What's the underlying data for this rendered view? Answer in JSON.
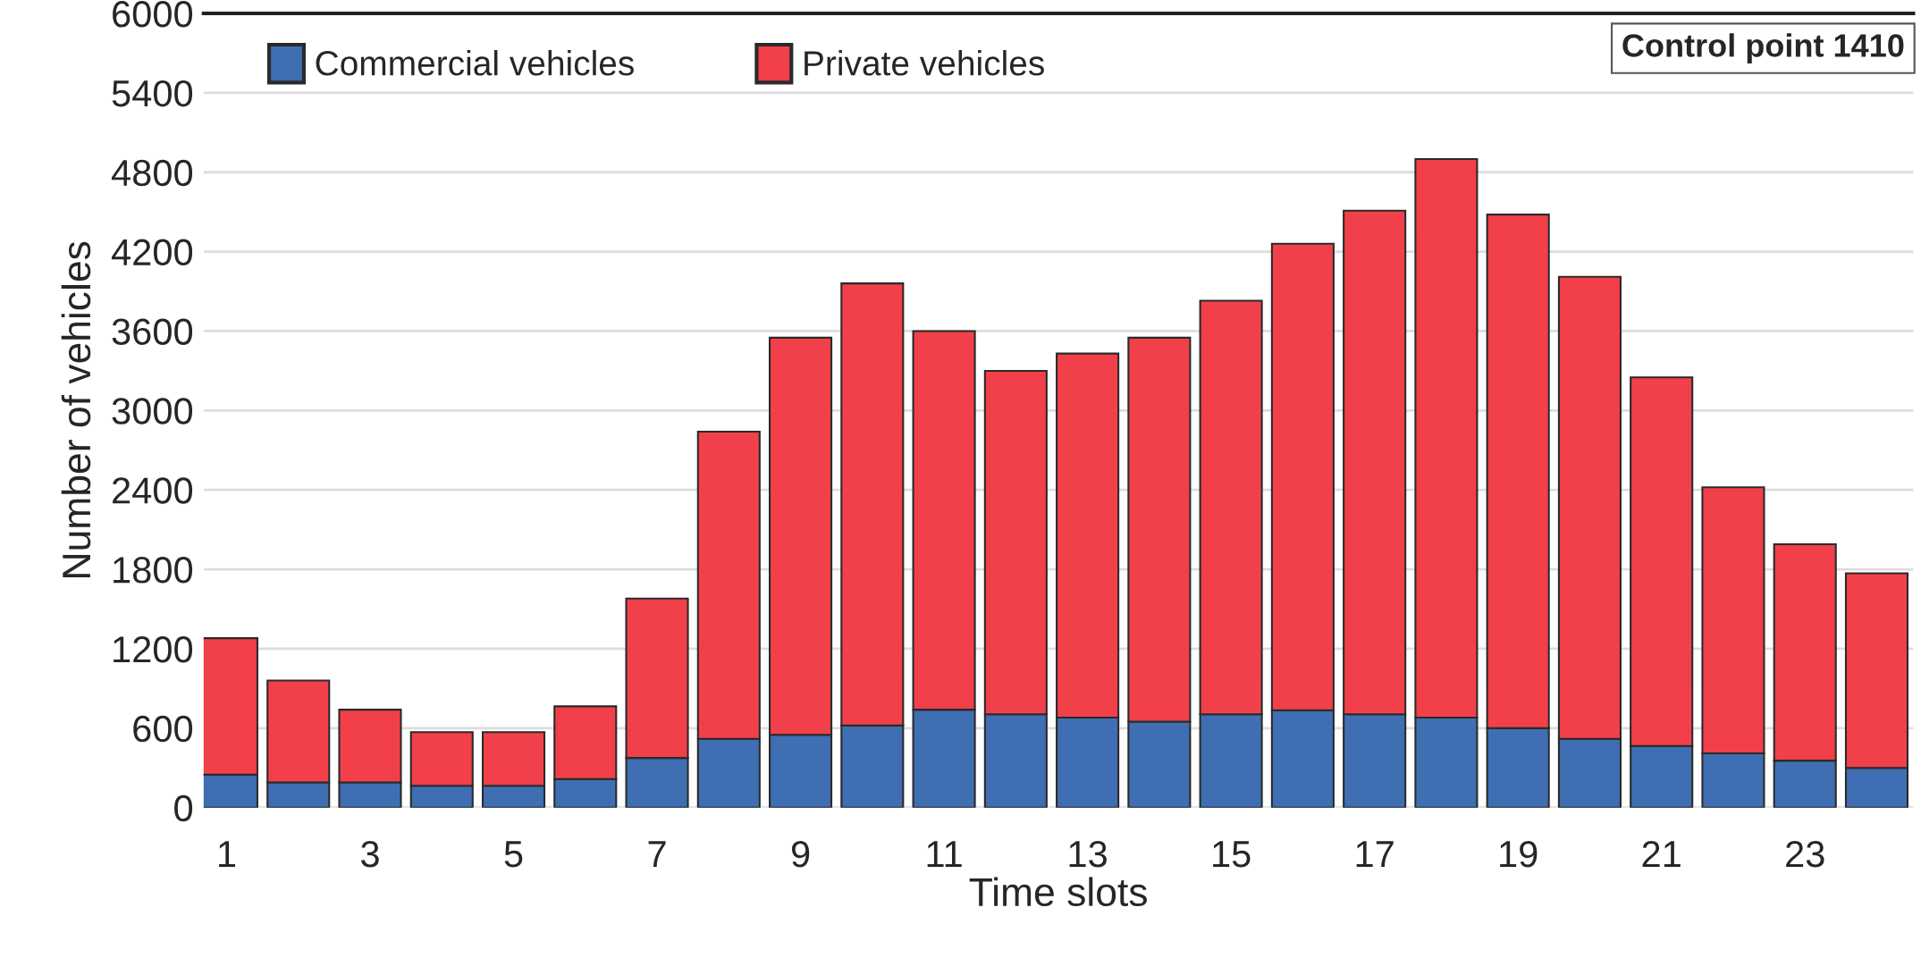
{
  "chart_data": {
    "type": "bar",
    "stacked": true,
    "xlabel": "Time slots",
    "ylabel": "Number of vehicles",
    "categories": [
      "1",
      null,
      "3",
      null,
      "5",
      null,
      "7",
      null,
      "9",
      null,
      "11",
      null,
      "13",
      null,
      "15",
      null,
      "17",
      null,
      "19",
      null,
      "21",
      null,
      "23",
      null
    ],
    "series": [
      {
        "name": "Commercial vehicles",
        "color": "#3f6fb2",
        "values": [
          250,
          190,
          190,
          165,
          165,
          215,
          375,
          520,
          550,
          620,
          740,
          705,
          680,
          650,
          705,
          735,
          705,
          680,
          600,
          520,
          465,
          410,
          355,
          300
        ]
      },
      {
        "name": "Private vehicles",
        "color": "#f2404a",
        "values": [
          1030,
          770,
          550,
          405,
          405,
          550,
          1205,
          2320,
          3000,
          3340,
          2860,
          2595,
          2750,
          2900,
          3125,
          3525,
          3805,
          4220,
          3880,
          3490,
          2785,
          2010,
          1635,
          1470
        ]
      }
    ],
    "ylim": [
      0,
      6000
    ],
    "yticks": [
      0,
      600,
      1200,
      1800,
      2400,
      3000,
      3600,
      4200,
      4800,
      5400,
      6000
    ],
    "grid": "y",
    "legend": "top left",
    "annotations": [
      "Control point 1410"
    ]
  }
}
